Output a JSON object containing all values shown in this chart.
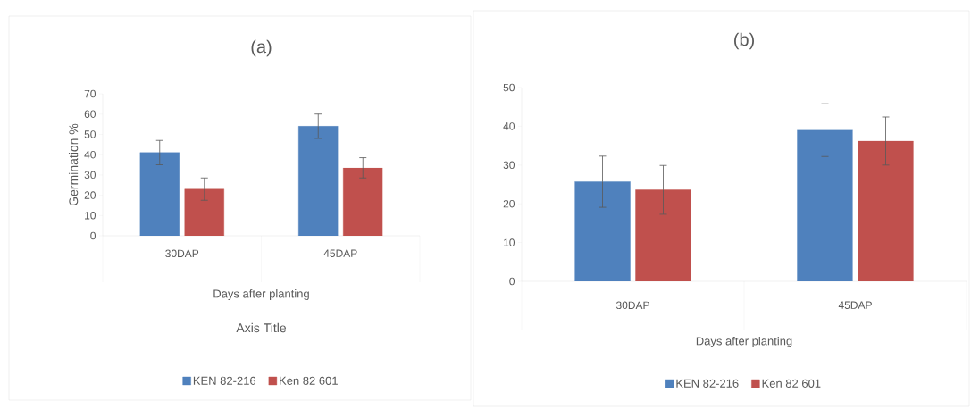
{
  "chart_data": [
    {
      "type": "bar",
      "title": "(a)",
      "xlabel": "Days after planting",
      "ylabel": "Germination %",
      "categories": [
        "30DAP",
        "45DAP"
      ],
      "series": [
        {
          "name": "KEN 82-216",
          "color": "#4f81bd",
          "values": [
            41,
            54
          ],
          "errors": [
            6,
            6
          ]
        },
        {
          "name": "Ken 82 601",
          "color": "#c0504d",
          "values": [
            23,
            33.5
          ],
          "errors": [
            5.5,
            5
          ]
        }
      ],
      "ylim": [
        0,
        70
      ],
      "yticks": [
        0,
        10,
        20,
        30,
        40,
        50,
        60,
        70
      ],
      "legend": "bottom",
      "annotations": [
        "Axis Title"
      ]
    },
    {
      "type": "bar",
      "title": "(b)",
      "xlabel": "Days after planting",
      "categories": [
        "30DAP",
        "45DAP"
      ],
      "series": [
        {
          "name": "KEN 82-216",
          "color": "#4f81bd",
          "values": [
            25.7,
            39
          ],
          "errors": [
            6.6,
            6.8
          ]
        },
        {
          "name": "Ken 82 601",
          "color": "#c0504d",
          "values": [
            23.6,
            36.2
          ],
          "errors": [
            6.3,
            6.2
          ]
        }
      ],
      "ylim": [
        0,
        50
      ],
      "yticks": [
        0,
        10,
        20,
        30,
        40,
        50
      ],
      "legend": "bottom"
    }
  ]
}
